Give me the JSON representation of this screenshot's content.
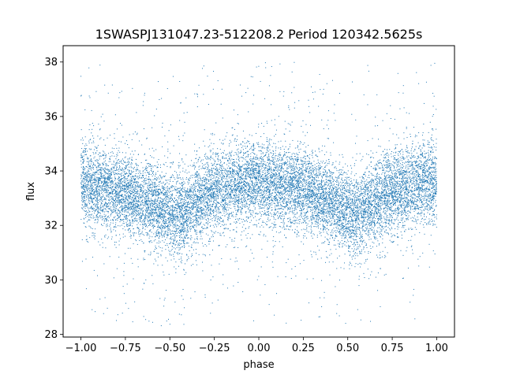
{
  "chart_data": {
    "type": "scatter",
    "title": "1SWASPJ131047.23-512208.2 Period 120342.5625s",
    "xlabel": "phase",
    "ylabel": "flux",
    "xlim": [
      -1.1,
      1.1
    ],
    "ylim": [
      27.9,
      38.6
    ],
    "xticks": [
      -1.0,
      -0.75,
      -0.5,
      -0.25,
      0.0,
      0.25,
      0.5,
      0.75,
      1.0
    ],
    "xtick_labels": [
      "−1.00",
      "−0.75",
      "−0.50",
      "−0.25",
      "0.00",
      "0.25",
      "0.50",
      "0.75",
      "1.00"
    ],
    "yticks": [
      28,
      30,
      32,
      34,
      36,
      38
    ],
    "ytick_labels": [
      "28",
      "30",
      "32",
      "34",
      "36",
      "38"
    ],
    "grid": false,
    "marker_color": "#1f77b4",
    "series": [
      {
        "phase_profile": [
          [
            -1.0,
            33.5
          ],
          [
            -0.9,
            33.4
          ],
          [
            -0.8,
            33.2
          ],
          [
            -0.7,
            33.0
          ],
          [
            -0.6,
            32.8
          ],
          [
            -0.5,
            32.5
          ],
          [
            -0.45,
            32.3
          ],
          [
            -0.4,
            32.6
          ],
          [
            -0.3,
            33.1
          ],
          [
            -0.2,
            33.3
          ],
          [
            -0.1,
            33.5
          ],
          [
            0.0,
            33.6
          ],
          [
            0.1,
            33.5
          ],
          [
            0.2,
            33.4
          ],
          [
            0.3,
            33.2
          ],
          [
            0.4,
            32.9
          ],
          [
            0.5,
            32.5
          ],
          [
            0.55,
            32.3
          ],
          [
            0.6,
            32.6
          ],
          [
            0.7,
            33.1
          ],
          [
            0.8,
            33.3
          ],
          [
            0.9,
            33.5
          ],
          [
            1.0,
            33.6
          ]
        ],
        "scatter_sigma": 0.75,
        "n_points": 14000
      }
    ]
  }
}
